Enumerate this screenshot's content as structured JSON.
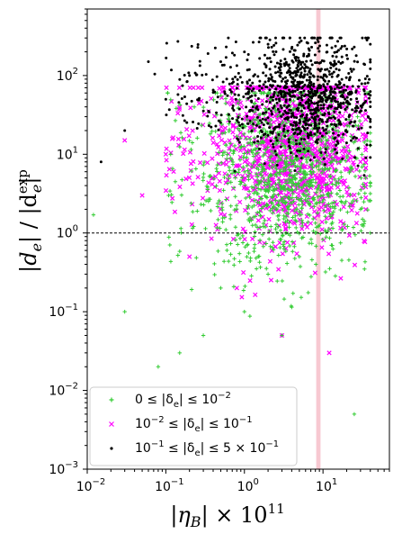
{
  "chart_data": {
    "type": "scatter",
    "xscale": "log",
    "yscale": "log",
    "xlim": [
      0.01,
      70
    ],
    "ylim": [
      0.001,
      700
    ],
    "xlabel": "|η_B| × 10^11",
    "ylabel": "|d_e| / |d_e^exp|",
    "x_ticks": [
      {
        "value": 0.01,
        "base": "10",
        "exp": "−2"
      },
      {
        "value": 0.1,
        "base": "10",
        "exp": "−1"
      },
      {
        "value": 1,
        "base": "10",
        "exp": "0"
      },
      {
        "value": 10,
        "base": "10",
        "exp": "1"
      }
    ],
    "y_ticks": [
      {
        "value": 0.001,
        "base": "10",
        "exp": "−3"
      },
      {
        "value": 0.01,
        "base": "10",
        "exp": "−2"
      },
      {
        "value": 0.1,
        "base": "10",
        "exp": "−1"
      },
      {
        "value": 1,
        "base": "10",
        "exp": "0"
      },
      {
        "value": 10,
        "base": "10",
        "exp": "1"
      },
      {
        "value": 100,
        "base": "10",
        "exp": "2"
      }
    ],
    "reference_line": {
      "y": 1.0,
      "style": "dashed",
      "color": "#000000"
    },
    "observed_band": {
      "x": [
        8.2,
        9.3
      ],
      "color": "#f4b6c2"
    },
    "grid": false,
    "legend_position": "lower-left",
    "series": [
      {
        "name": "0 ≤ |δe| ≤ 10⁻²",
        "name_parts": [
          "0 ≤ |δ",
          "e",
          "| ≤ 10",
          "−2",
          ""
        ],
        "marker": "plus",
        "color": "#33cc33",
        "approx_count": 1100,
        "x_range": [
          0.012,
          40
        ],
        "y_range": [
          0.005,
          60
        ],
        "points": [
          [
            0.012,
            1.7
          ],
          [
            0.03,
            0.1
          ],
          [
            0.08,
            0.02
          ],
          [
            0.15,
            0.03
          ],
          [
            0.3,
            0.05
          ],
          [
            0.5,
            0.2
          ],
          [
            1,
            0.1
          ],
          [
            2,
            0.3
          ],
          [
            3,
            0.05
          ],
          [
            5,
            0.5
          ],
          [
            8,
            1
          ],
          [
            10,
            3
          ],
          [
            15,
            8
          ],
          [
            20,
            20
          ],
          [
            25,
            0.005
          ],
          [
            30,
            2
          ],
          [
            35,
            5
          ],
          [
            40,
            1
          ]
        ]
      },
      {
        "name": "10⁻² ≤ |δe| ≤ 10⁻¹",
        "name_parts": [
          "10",
          "−2",
          " ≤ |δ",
          "e",
          "| ≤ 10",
          "−1"
        ],
        "marker": "x",
        "color": "#ff00ff",
        "approx_count": 1100,
        "x_range": [
          0.02,
          35
        ],
        "y_range": [
          0.01,
          70
        ],
        "points": [
          [
            0.03,
            15
          ],
          [
            0.05,
            3
          ],
          [
            0.1,
            10
          ],
          [
            0.2,
            0.5
          ],
          [
            0.4,
            5
          ],
          [
            0.8,
            0.2
          ],
          [
            1.5,
            10
          ],
          [
            3,
            0.05
          ],
          [
            6,
            30
          ],
          [
            9,
            2
          ],
          [
            12,
            0.03
          ],
          [
            20,
            40
          ],
          [
            30,
            8
          ]
        ]
      },
      {
        "name": "10⁻¹ ≤ |δe| ≤ 5 × 10⁻¹",
        "name_parts": [
          "10",
          "−1",
          " ≤ |δ",
          "e",
          "| ≤ 5 × 10",
          "−1"
        ],
        "marker": "dot",
        "color": "#000000",
        "approx_count": 1000,
        "x_range": [
          0.015,
          40
        ],
        "y_range": [
          0.05,
          300
        ],
        "points": [
          [
            0.015,
            8
          ],
          [
            0.03,
            20
          ],
          [
            0.06,
            150
          ],
          [
            0.1,
            50
          ],
          [
            0.2,
            100
          ],
          [
            0.5,
            150
          ],
          [
            1,
            200
          ],
          [
            2,
            250
          ],
          [
            4,
            220
          ],
          [
            8,
            260
          ],
          [
            15,
            200
          ],
          [
            25,
            230
          ],
          [
            40,
            250
          ]
        ]
      }
    ]
  }
}
